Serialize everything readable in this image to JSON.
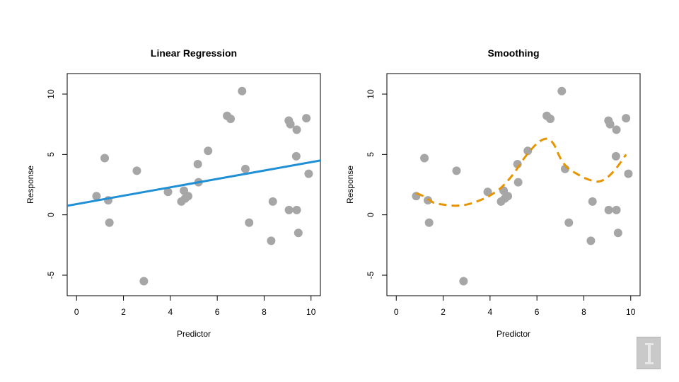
{
  "chart_data": [
    {
      "type": "scatter",
      "title": "Linear Regression",
      "xlabel": "Predictor",
      "ylabel": "Response",
      "xlim": [
        -0.4,
        10.4
      ],
      "ylim": [
        -6.7,
        11.7
      ],
      "xticks": [
        0,
        2,
        4,
        6,
        8,
        10
      ],
      "yticks": [
        -5,
        0,
        5,
        10
      ],
      "xtick_labels": [
        "0",
        "2",
        "4",
        "6",
        "8",
        "10"
      ],
      "ytick_labels": [
        "-5",
        "0",
        "5",
        "10"
      ],
      "points": [
        {
          "x": 0.85,
          "y": 1.55
        },
        {
          "x": 1.2,
          "y": 4.7
        },
        {
          "x": 1.35,
          "y": 1.2
        },
        {
          "x": 1.4,
          "y": -0.65
        },
        {
          "x": 2.57,
          "y": 3.65
        },
        {
          "x": 2.87,
          "y": -5.5
        },
        {
          "x": 3.9,
          "y": 1.9
        },
        {
          "x": 4.47,
          "y": 1.1
        },
        {
          "x": 4.58,
          "y": 2.0
        },
        {
          "x": 4.63,
          "y": 1.35
        },
        {
          "x": 4.76,
          "y": 1.55
        },
        {
          "x": 5.17,
          "y": 4.2
        },
        {
          "x": 5.2,
          "y": 2.7
        },
        {
          "x": 5.61,
          "y": 5.3
        },
        {
          "x": 6.42,
          "y": 8.2
        },
        {
          "x": 6.57,
          "y": 7.95
        },
        {
          "x": 7.06,
          "y": 10.25
        },
        {
          "x": 7.2,
          "y": 3.8
        },
        {
          "x": 7.36,
          "y": -0.65
        },
        {
          "x": 8.3,
          "y": -2.15
        },
        {
          "x": 8.37,
          "y": 1.1
        },
        {
          "x": 9.05,
          "y": 7.8
        },
        {
          "x": 9.12,
          "y": 7.5
        },
        {
          "x": 9.06,
          "y": 0.4
        },
        {
          "x": 9.37,
          "y": 4.85
        },
        {
          "x": 9.39,
          "y": 7.05
        },
        {
          "x": 9.39,
          "y": 0.4
        },
        {
          "x": 9.46,
          "y": -1.5
        },
        {
          "x": 9.8,
          "y": 8.0
        },
        {
          "x": 9.9,
          "y": 3.4
        }
      ],
      "fit": {
        "kind": "linear",
        "color": "#1f8fd6",
        "line": [
          {
            "x": -0.4,
            "y": 0.75
          },
          {
            "x": 10.4,
            "y": 4.5
          }
        ]
      },
      "grid": false,
      "point_color": "#a6a6a6"
    },
    {
      "type": "scatter",
      "title": "Smoothing",
      "xlabel": "Predictor",
      "ylabel": "Response",
      "xlim": [
        -0.4,
        10.4
      ],
      "ylim": [
        -6.7,
        11.7
      ],
      "xticks": [
        0,
        2,
        4,
        6,
        8,
        10
      ],
      "yticks": [
        -5,
        0,
        5,
        10
      ],
      "xtick_labels": [
        "0",
        "2",
        "4",
        "6",
        "8",
        "10"
      ],
      "ytick_labels": [
        "-5",
        "0",
        "5",
        "10"
      ],
      "points": [
        {
          "x": 0.85,
          "y": 1.55
        },
        {
          "x": 1.2,
          "y": 4.7
        },
        {
          "x": 1.35,
          "y": 1.2
        },
        {
          "x": 1.4,
          "y": -0.65
        },
        {
          "x": 2.57,
          "y": 3.65
        },
        {
          "x": 2.87,
          "y": -5.5
        },
        {
          "x": 3.9,
          "y": 1.9
        },
        {
          "x": 4.47,
          "y": 1.1
        },
        {
          "x": 4.58,
          "y": 2.0
        },
        {
          "x": 4.63,
          "y": 1.35
        },
        {
          "x": 4.76,
          "y": 1.55
        },
        {
          "x": 5.17,
          "y": 4.2
        },
        {
          "x": 5.2,
          "y": 2.7
        },
        {
          "x": 5.61,
          "y": 5.3
        },
        {
          "x": 6.42,
          "y": 8.2
        },
        {
          "x": 6.57,
          "y": 7.95
        },
        {
          "x": 7.06,
          "y": 10.25
        },
        {
          "x": 7.2,
          "y": 3.8
        },
        {
          "x": 7.36,
          "y": -0.65
        },
        {
          "x": 8.3,
          "y": -2.15
        },
        {
          "x": 8.37,
          "y": 1.1
        },
        {
          "x": 9.05,
          "y": 7.8
        },
        {
          "x": 9.12,
          "y": 7.5
        },
        {
          "x": 9.06,
          "y": 0.4
        },
        {
          "x": 9.37,
          "y": 4.85
        },
        {
          "x": 9.39,
          "y": 7.05
        },
        {
          "x": 9.39,
          "y": 0.4
        },
        {
          "x": 9.46,
          "y": -1.5
        },
        {
          "x": 9.8,
          "y": 8.0
        },
        {
          "x": 9.9,
          "y": 3.4
        }
      ],
      "fit": {
        "kind": "smooth",
        "color": "#e69500",
        "dashed": true,
        "line": [
          {
            "x": 0.85,
            "y": 1.8
          },
          {
            "x": 1.2,
            "y": 1.5
          },
          {
            "x": 1.6,
            "y": 1.0
          },
          {
            "x": 2.0,
            "y": 0.85
          },
          {
            "x": 2.5,
            "y": 0.75
          },
          {
            "x": 3.0,
            "y": 0.85
          },
          {
            "x": 3.5,
            "y": 1.15
          },
          {
            "x": 4.0,
            "y": 1.6
          },
          {
            "x": 4.5,
            "y": 2.3
          },
          {
            "x": 5.0,
            "y": 3.4
          },
          {
            "x": 5.5,
            "y": 4.8
          },
          {
            "x": 6.0,
            "y": 5.9
          },
          {
            "x": 6.4,
            "y": 6.3
          },
          {
            "x": 6.7,
            "y": 5.9
          },
          {
            "x": 7.0,
            "y": 4.7
          },
          {
            "x": 7.3,
            "y": 3.9
          },
          {
            "x": 7.7,
            "y": 3.4
          },
          {
            "x": 8.1,
            "y": 3.0
          },
          {
            "x": 8.6,
            "y": 2.75
          },
          {
            "x": 9.0,
            "y": 3.1
          },
          {
            "x": 9.4,
            "y": 3.9
          },
          {
            "x": 9.8,
            "y": 5.0
          }
        ]
      },
      "grid": false,
      "point_color": "#a6a6a6"
    }
  ]
}
